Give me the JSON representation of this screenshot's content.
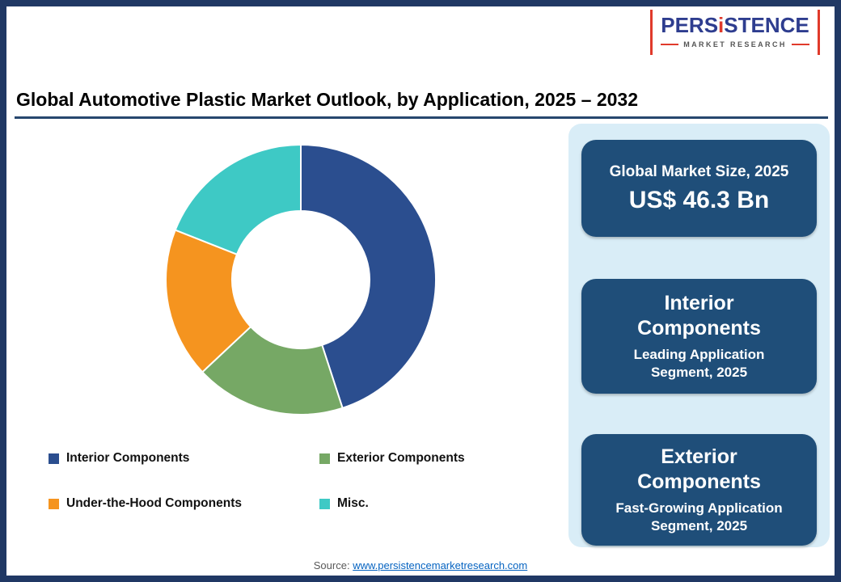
{
  "logo": {
    "pers": "PERS",
    "i": "i",
    "stence": "STENCE",
    "sub": "MARKET RESEARCH"
  },
  "header": {
    "title": "Global Automotive Plastic Market Outlook, by Application, 2025 – 2032"
  },
  "chart_data": {
    "type": "pie",
    "donut": true,
    "title": "Global Automotive Plastic Market Outlook, by Application, 2025 – 2032",
    "categories": [
      "Interior Components",
      "Exterior Components",
      "Under-the-Hood Components",
      "Misc."
    ],
    "values": [
      45,
      18,
      18,
      19
    ],
    "unit": "percent-share-estimated",
    "colors": [
      "#2b4e8f",
      "#76a865",
      "#f5941f",
      "#3ec9c5"
    ],
    "start_angle_deg": 0,
    "inner_radius_ratio": 0.51,
    "legend_position": "bottom"
  },
  "sidebar": {
    "panel_bg": "#d9edf7",
    "card_bg": "#1f4e79",
    "cards": [
      {
        "line1": "Global Market Size, 2025",
        "line2": "US$ 46.3 Bn"
      },
      {
        "title": "Interior Components",
        "subtitle": "Leading Application Segment, 2025"
      },
      {
        "title": "Exterior Components",
        "subtitle": "Fast-Growing Application Segment, 2025"
      }
    ]
  },
  "footer": {
    "source_label": "Source:",
    "source_link": "www.persistencemarketresearch.com"
  }
}
